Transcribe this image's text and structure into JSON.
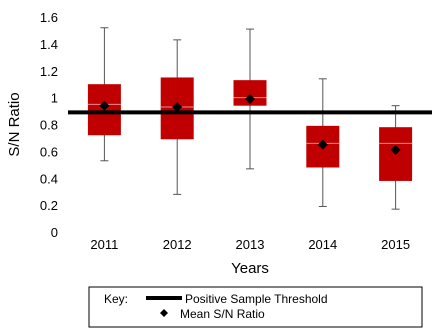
{
  "chart_data": {
    "type": "boxplot",
    "title": "",
    "xlabel": "Years",
    "ylabel": "S/N Ratio",
    "ylim": [
      0,
      1.6
    ],
    "yticks": [
      "0",
      "0.2",
      "0.4",
      "0.6",
      "0.8",
      "1",
      "1.2",
      "1.4",
      "1.6"
    ],
    "categories": [
      "2011",
      "2012",
      "2013",
      "2014",
      "2015"
    ],
    "boxes": [
      {
        "min": 0.53,
        "q1": 0.72,
        "median": 0.95,
        "q3": 1.1,
        "max": 1.52,
        "mean": 0.94
      },
      {
        "min": 0.28,
        "q1": 0.69,
        "median": 0.93,
        "q3": 1.15,
        "max": 1.43,
        "mean": 0.93
      },
      {
        "min": 0.47,
        "q1": 0.94,
        "median": 1.0,
        "q3": 1.13,
        "max": 1.51,
        "mean": 0.99
      },
      {
        "min": 0.19,
        "q1": 0.48,
        "median": 0.66,
        "q3": 0.79,
        "max": 1.14,
        "mean": 0.65
      },
      {
        "min": 0.17,
        "q1": 0.38,
        "median": 0.66,
        "q3": 0.78,
        "max": 0.94,
        "mean": 0.61
      }
    ],
    "threshold": 0.89,
    "box_color": "#c00000",
    "line_color": "#000000",
    "grid": false,
    "legend": {
      "placement": "bottom",
      "key_label": "Key:",
      "entries": [
        "Positive Sample Threshold",
        "Mean S/N Ratio"
      ]
    }
  }
}
